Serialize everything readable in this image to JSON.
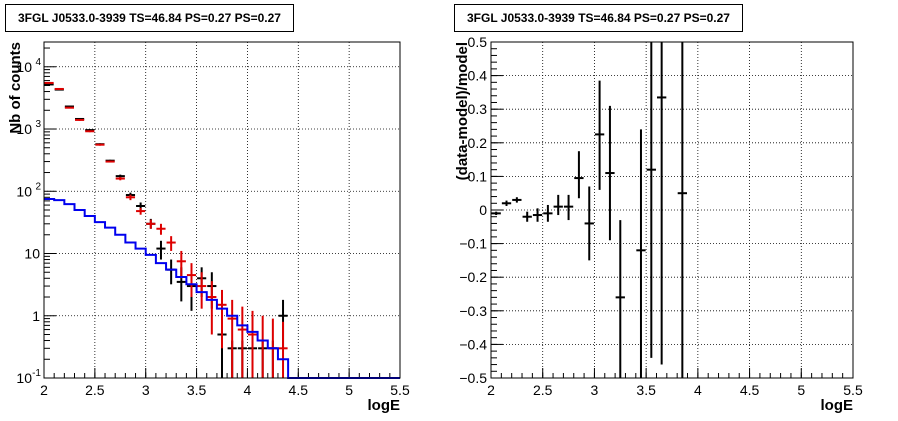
{
  "chart_data": [
    {
      "type": "line",
      "title": "3FGL J0533.0-3939 TS=46.84 PS=0.27 PS=0.27",
      "xlabel": "logE",
      "ylabel": "Nb of counts",
      "xlim": [
        2,
        5.5
      ],
      "ylim": [
        0.1,
        25000
      ],
      "yscale": "log",
      "grid": true,
      "x_ticks": [
        "2",
        "2.5",
        "3",
        "3.5",
        "4",
        "4.5",
        "5",
        "5.5"
      ],
      "y_ticks": [
        {
          "value": 0.1,
          "label": "10",
          "sup": "-1"
        },
        {
          "value": 1,
          "label": "1",
          "sup": ""
        },
        {
          "value": 10,
          "label": "10",
          "sup": ""
        },
        {
          "value": 100,
          "label": "10",
          "sup": "2"
        },
        {
          "value": 1000,
          "label": "10",
          "sup": "3"
        },
        {
          "value": 10000,
          "label": "10",
          "sup": "4"
        }
      ],
      "colors": {
        "data": "#000000",
        "model": "#dd0000",
        "background": "#0000ee"
      },
      "bin_width": 0.1,
      "series": [
        {
          "kind": "points",
          "color": "#000000",
          "x": [
            2.05,
            2.15,
            2.25,
            2.35,
            2.45,
            2.55,
            2.65,
            2.75,
            2.85,
            2.95,
            3.05,
            3.15,
            3.25,
            3.35,
            3.45,
            3.55,
            3.65,
            3.75,
            3.85,
            3.95,
            4.05,
            4.15,
            4.25,
            4.35
          ],
          "y": [
            5200,
            4300,
            2300,
            1450,
            960,
            570,
            310,
            175,
            87,
            58,
            30,
            12,
            5.5,
            3.5,
            3.0,
            4.0,
            3.0,
            0.5,
            0.3,
            0.3,
            0.3,
            0.3,
            0.3,
            1.0
          ],
          "ylo": [
            5100,
            4200,
            2250,
            1400,
            930,
            550,
            300,
            165,
            80,
            50,
            25,
            8,
            3.2,
            1.7,
            1.2,
            2.0,
            1.3,
            0.1,
            0.1,
            0.1,
            0.1,
            0.1,
            0.1,
            0.3
          ],
          "yhi": [
            5300,
            4400,
            2350,
            1500,
            990,
            590,
            320,
            185,
            95,
            66,
            36,
            16,
            8,
            6,
            5,
            6,
            5,
            0.6,
            0.4,
            0.4,
            0.4,
            0.4,
            0.4,
            1.8
          ]
        },
        {
          "kind": "points",
          "color": "#dd0000",
          "x": [
            2.05,
            2.15,
            2.25,
            2.35,
            2.45,
            2.55,
            2.65,
            2.75,
            2.85,
            2.95,
            3.05,
            3.15,
            3.25,
            3.35,
            3.45,
            3.55,
            3.65,
            3.75,
            3.85,
            3.95,
            4.05,
            4.15,
            4.25,
            4.35
          ],
          "y": [
            5500,
            4400,
            2200,
            1400,
            920,
            560,
            300,
            160,
            80,
            48,
            30,
            25,
            15,
            7.5,
            4.5,
            3.0,
            2.0,
            1.5,
            0.9,
            0.6,
            0.5,
            0.4,
            0.3,
            0.3
          ],
          "ylo": [
            5400,
            4300,
            2150,
            1350,
            890,
            540,
            290,
            150,
            72,
            42,
            25,
            20,
            11,
            4,
            2,
            1.3,
            0.5,
            0.3,
            0.1,
            0.1,
            0.1,
            0.1,
            0.1,
            0.1
          ],
          "yhi": [
            5600,
            4500,
            2250,
            1450,
            950,
            580,
            310,
            170,
            88,
            54,
            35,
            30,
            19,
            11,
            7,
            5,
            3.6,
            2.6,
            1.8,
            1.4,
            1.2,
            1.0,
            0.9,
            0.8
          ]
        },
        {
          "kind": "step",
          "color": "#0000ee",
          "x": [
            2.05,
            2.15,
            2.25,
            2.35,
            2.45,
            2.55,
            2.65,
            2.75,
            2.85,
            2.95,
            3.05,
            3.15,
            3.25,
            3.35,
            3.45,
            3.55,
            3.65,
            3.75,
            3.85,
            3.95,
            4.05,
            4.15,
            4.25,
            4.35,
            4.45,
            4.55,
            4.65,
            4.75,
            4.85,
            4.95,
            5.05,
            5.15,
            5.25,
            5.35,
            5.45
          ],
          "y": [
            75,
            72,
            62,
            50,
            40,
            32,
            26,
            20,
            15,
            12,
            9.5,
            7,
            5.5,
            4.2,
            3.2,
            2.4,
            1.8,
            1.3,
            1.0,
            0.7,
            0.55,
            0.4,
            0.3,
            0.2,
            0.1,
            0.1,
            0.1,
            0.1,
            0.1,
            0.1,
            0.1,
            0.1,
            0.1,
            0.1,
            0.1
          ]
        }
      ]
    },
    {
      "type": "scatter",
      "title": "3FGL J0533.0-3939 TS=46.84 PS=0.27 PS=0.27",
      "xlabel": "logE",
      "ylabel": "(data-model)/model",
      "xlim": [
        2,
        5.5
      ],
      "ylim": [
        -0.5,
        0.5
      ],
      "grid": true,
      "x_ticks": [
        "2",
        "2.5",
        "3",
        "3.5",
        "4",
        "4.5",
        "5",
        "5.5"
      ],
      "y_ticks": [
        "-0.5",
        "-0.4",
        "-0.3",
        "-0.2",
        "-0.1",
        "0",
        "0.1",
        "0.2",
        "0.3",
        "0.4",
        "0.5"
      ],
      "bin_width": 0.1,
      "series": [
        {
          "kind": "points",
          "color": "#000000",
          "x": [
            2.05,
            2.15,
            2.25,
            2.35,
            2.45,
            2.55,
            2.65,
            2.75,
            2.85,
            2.95,
            3.05,
            3.15,
            3.25,
            3.45,
            3.55,
            3.65,
            3.85
          ],
          "y": [
            -0.01,
            0.02,
            0.03,
            -0.02,
            -0.015,
            -0.01,
            0.01,
            0.01,
            0.095,
            -0.04,
            0.225,
            0.11,
            -0.26,
            -0.12,
            0.12,
            0.335,
            0.05
          ],
          "ylo": [
            -0.015,
            0.012,
            0.022,
            -0.035,
            -0.035,
            -0.035,
            -0.015,
            -0.03,
            0.035,
            -0.15,
            0.06,
            -0.09,
            -0.5,
            -0.5,
            -0.44,
            -0.46,
            -0.5
          ],
          "yhi": [
            -0.005,
            0.028,
            0.038,
            -0.005,
            0.005,
            0.015,
            0.045,
            0.045,
            0.175,
            0.07,
            0.385,
            0.31,
            -0.03,
            0.24,
            0.5,
            0.5,
            0.5
          ]
        }
      ]
    }
  ]
}
